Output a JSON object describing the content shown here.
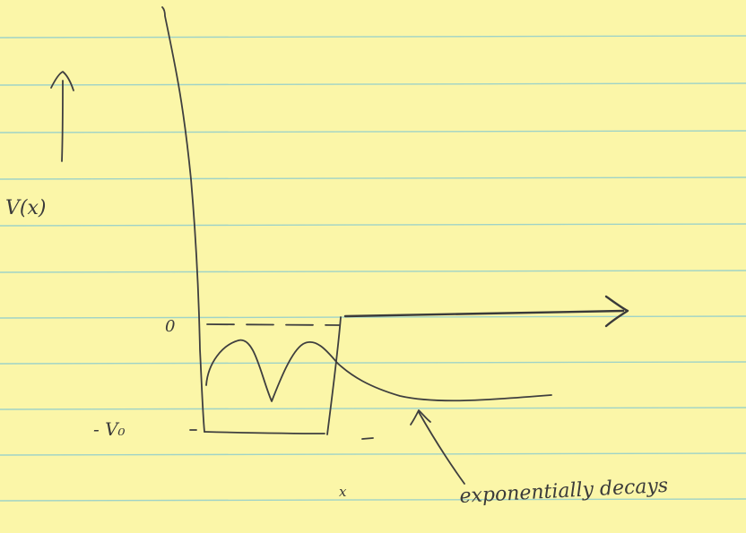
{
  "labels": {
    "potential": "V(x)",
    "zero": "0",
    "minus_v0": "- V₀",
    "x_axis": "x",
    "annotation": "exponentially decays"
  },
  "colors": {
    "paper": "#fbf6a8",
    "rule_line": "#9fd3c7",
    "ink": "#3a3a3a"
  }
}
